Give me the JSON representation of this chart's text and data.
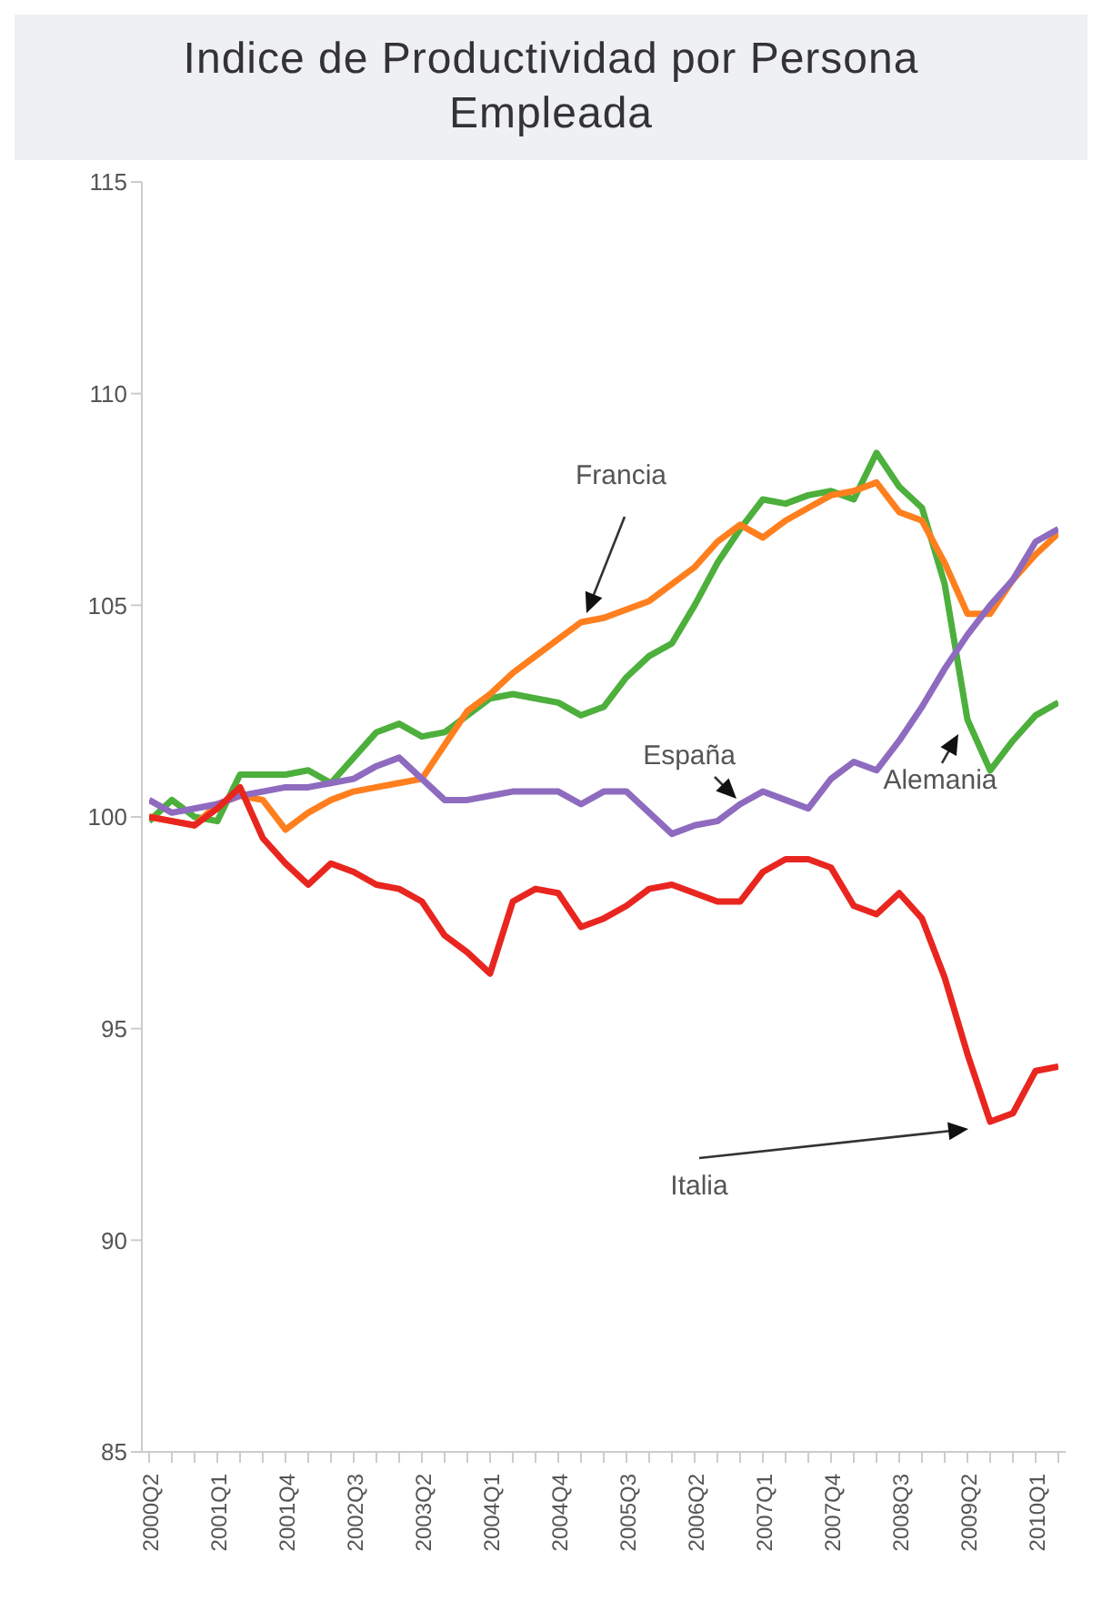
{
  "chart_data": {
    "type": "line",
    "title": "Indice de Productividad por Persona Empleada",
    "categories": [
      "2000Q2",
      null,
      null,
      "2001Q1",
      null,
      null,
      "2001Q4",
      null,
      null,
      "2002Q3",
      null,
      null,
      "2003Q2",
      null,
      null,
      "2004Q1",
      null,
      null,
      "2004Q4",
      null,
      null,
      "2005Q3",
      null,
      null,
      "2006Q2",
      null,
      null,
      "2007Q1",
      null,
      null,
      "2007Q4",
      null,
      null,
      "2008Q3",
      null,
      null,
      "2009Q2",
      null,
      null,
      "2010Q1",
      null
    ],
    "series": [
      {
        "name": "Alemania",
        "color": "#4daf3c",
        "values": [
          99.9,
          100.4,
          100.0,
          99.9,
          101.0,
          101.0,
          101.0,
          101.1,
          100.8,
          101.4,
          102.0,
          102.2,
          101.9,
          102.0,
          102.4,
          102.8,
          102.9,
          102.8,
          102.7,
          102.4,
          102.6,
          103.3,
          103.8,
          104.1,
          105.0,
          106.0,
          106.8,
          107.5,
          107.4,
          107.6,
          107.7,
          107.5,
          108.6,
          107.8,
          107.3,
          105.5,
          102.3,
          101.1,
          101.8,
          102.4,
          102.7
        ]
      },
      {
        "name": "Francia",
        "color": "#ff7f1e",
        "values": [
          100.0,
          99.9,
          99.8,
          100.3,
          100.5,
          100.4,
          99.7,
          100.1,
          100.4,
          100.6,
          100.7,
          100.8,
          100.9,
          101.7,
          102.5,
          102.9,
          103.4,
          103.8,
          104.2,
          104.6,
          104.7,
          104.9,
          105.1,
          105.5,
          105.9,
          106.5,
          106.9,
          106.6,
          107.0,
          107.3,
          107.6,
          107.7,
          107.9,
          107.2,
          107.0,
          106.0,
          104.8,
          104.8,
          105.6,
          106.2,
          106.7
        ]
      },
      {
        "name": "España",
        "color": "#8e6bbf",
        "values": [
          100.4,
          100.1,
          100.2,
          100.3,
          100.5,
          100.6,
          100.7,
          100.7,
          100.8,
          100.9,
          101.2,
          101.4,
          100.9,
          100.4,
          100.4,
          100.5,
          100.6,
          100.6,
          100.6,
          100.3,
          100.6,
          100.6,
          100.1,
          99.6,
          99.8,
          99.9,
          100.3,
          100.6,
          100.4,
          100.2,
          100.9,
          101.3,
          101.1,
          101.8,
          102.6,
          103.5,
          104.3,
          105.0,
          105.6,
          106.5,
          106.8
        ]
      },
      {
        "name": "Italia",
        "color": "#e8261f",
        "values": [
          100.0,
          99.9,
          99.8,
          100.2,
          100.7,
          99.5,
          98.9,
          98.4,
          98.9,
          98.7,
          98.4,
          98.3,
          98.0,
          97.2,
          96.8,
          96.3,
          98.0,
          98.3,
          98.2,
          97.4,
          97.6,
          97.9,
          98.3,
          98.4,
          98.2,
          98.0,
          98.0,
          98.7,
          99.0,
          99.0,
          98.8,
          97.9,
          97.7,
          98.2,
          97.6,
          96.2,
          94.4,
          92.8,
          93.0,
          94.0,
          94.1
        ]
      }
    ],
    "ylim": [
      85,
      115
    ],
    "yticks": [
      85,
      90,
      95,
      100,
      105,
      110,
      115
    ],
    "marker": "none",
    "line_style": "solid"
  }
}
